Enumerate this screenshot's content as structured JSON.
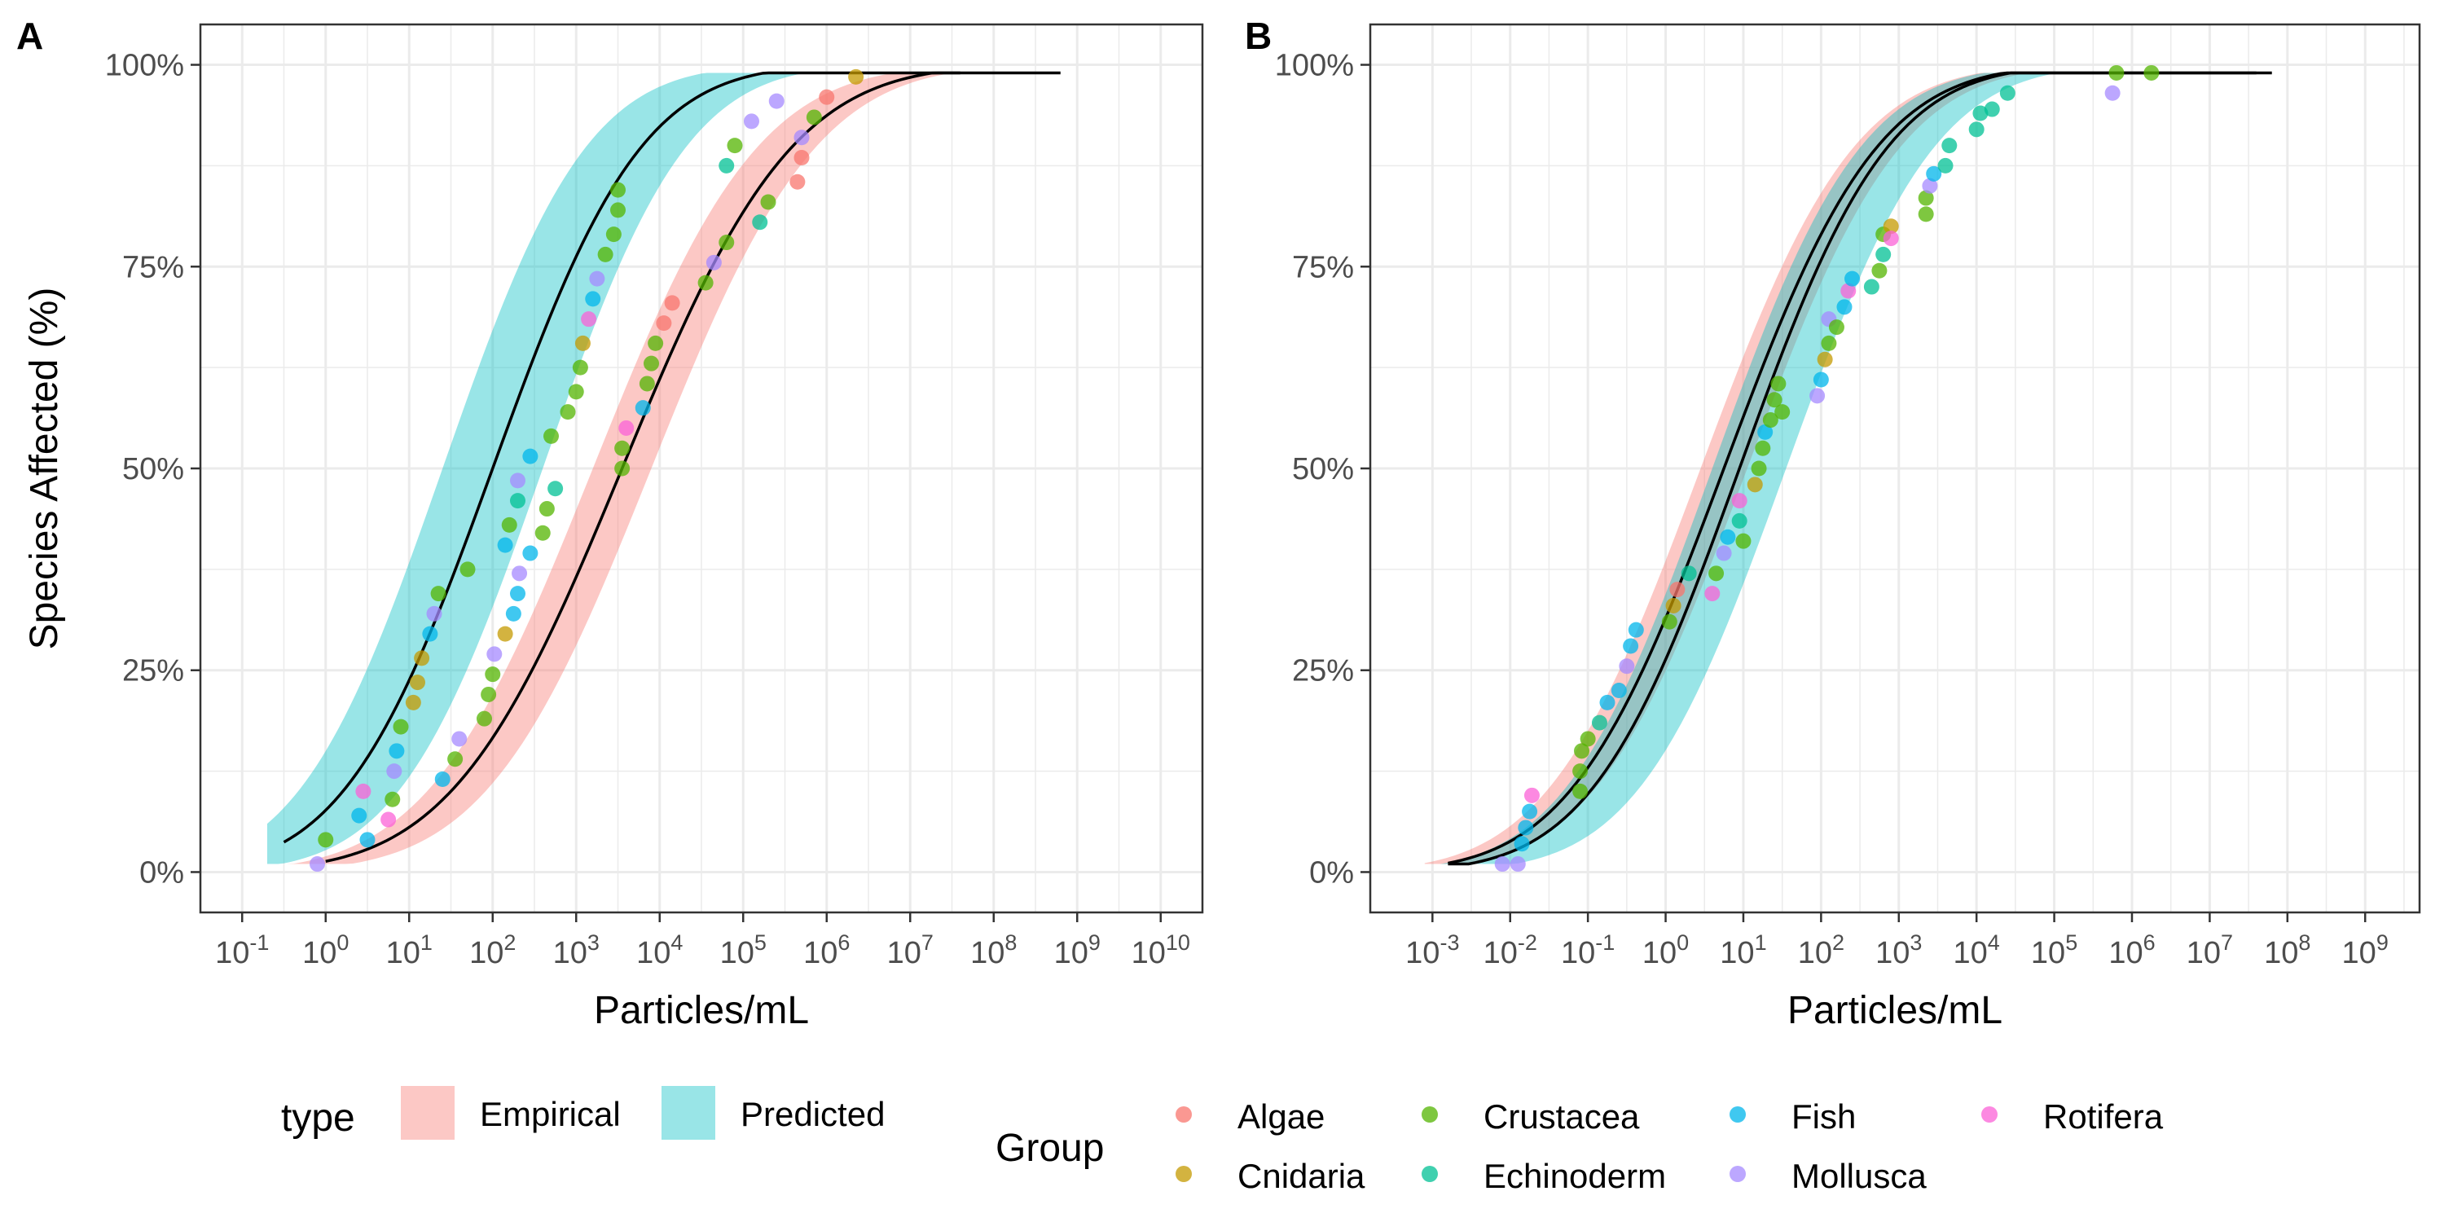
{
  "figure": {
    "y_axis_title": "Species Affected (%)"
  },
  "legend": {
    "type_title": "type",
    "type_items": [
      {
        "label": "Empirical",
        "color": "#F8766D"
      },
      {
        "label": "Predicted",
        "color": "#00BFC4"
      }
    ],
    "group_title": "Group",
    "group_items": [
      {
        "label": "Algae",
        "color": "#F8766D"
      },
      {
        "label": "Cnidaria",
        "color": "#C49A00"
      },
      {
        "label": "Crustacea",
        "color": "#53B400"
      },
      {
        "label": "Echinoderm",
        "color": "#00C094"
      },
      {
        "label": "Fish",
        "color": "#00B6EB"
      },
      {
        "label": "Mollusca",
        "color": "#A58AFF"
      },
      {
        "label": "Rotifera",
        "color": "#FB61D7"
      }
    ]
  },
  "chart_data": [
    {
      "panel": "A",
      "type": "scatter",
      "x_scale": "log10",
      "xlabel": "Particles/mL",
      "ylabel": "Species Affected (%)",
      "xlim_log10": [
        -1.5,
        10.5
      ],
      "ylim": [
        -0.05,
        1.05
      ],
      "x_ticks_log10": [
        -1,
        0,
        1,
        2,
        3,
        4,
        5,
        6,
        7,
        8,
        9,
        10
      ],
      "y_ticks": [
        0,
        0.25,
        0.5,
        0.75,
        1.0
      ],
      "y_tick_labels": [
        "0%",
        "25%",
        "50%",
        "75%",
        "100%"
      ],
      "curves": [
        {
          "name": "Empirical",
          "color": "#F8766D",
          "mu": 3.55,
          "sd": 1.6,
          "x_from": 0.0,
          "x_to": 8.8,
          "band_from": -1.0,
          "band_to": 9.6,
          "band_lo_mu": 3.2,
          "band_hi_mu": 3.9,
          "band_sd": 1.55
        },
        {
          "name": "Predicted",
          "color": "#00BFC4",
          "mu": 2.0,
          "sd": 1.4,
          "x_from": -0.5,
          "x_to": 7.6,
          "band_from": -0.7,
          "band_to": 7.2,
          "band_lo_mu": 1.4,
          "band_hi_mu": 2.6,
          "band_sd": 1.35
        }
      ],
      "points": [
        {
          "x": -0.1,
          "y": 0.01,
          "group": "Mollusca"
        },
        {
          "x": 0.0,
          "y": 0.04,
          "group": "Crustacea"
        },
        {
          "x": 0.4,
          "y": 0.07,
          "group": "Fish"
        },
        {
          "x": 0.45,
          "y": 0.1,
          "group": "Rotifera"
        },
        {
          "x": 0.5,
          "y": 0.04,
          "group": "Fish"
        },
        {
          "x": 0.75,
          "y": 0.065,
          "group": "Rotifera"
        },
        {
          "x": 0.8,
          "y": 0.09,
          "group": "Crustacea"
        },
        {
          "x": 0.82,
          "y": 0.125,
          "group": "Mollusca"
        },
        {
          "x": 0.85,
          "y": 0.15,
          "group": "Fish"
        },
        {
          "x": 0.9,
          "y": 0.18,
          "group": "Crustacea"
        },
        {
          "x": 1.05,
          "y": 0.21,
          "group": "Cnidaria"
        },
        {
          "x": 1.1,
          "y": 0.235,
          "group": "Cnidaria"
        },
        {
          "x": 1.15,
          "y": 0.265,
          "group": "Cnidaria"
        },
        {
          "x": 1.25,
          "y": 0.295,
          "group": "Fish"
        },
        {
          "x": 1.3,
          "y": 0.32,
          "group": "Mollusca"
        },
        {
          "x": 1.35,
          "y": 0.345,
          "group": "Crustacea"
        },
        {
          "x": 1.4,
          "y": 0.115,
          "group": "Fish"
        },
        {
          "x": 1.55,
          "y": 0.14,
          "group": "Crustacea"
        },
        {
          "x": 1.6,
          "y": 0.165,
          "group": "Mollusca"
        },
        {
          "x": 1.7,
          "y": 0.375,
          "group": "Crustacea"
        },
        {
          "x": 1.9,
          "y": 0.19,
          "group": "Crustacea"
        },
        {
          "x": 1.95,
          "y": 0.22,
          "group": "Crustacea"
        },
        {
          "x": 2.0,
          "y": 0.245,
          "group": "Crustacea"
        },
        {
          "x": 2.02,
          "y": 0.27,
          "group": "Mollusca"
        },
        {
          "x": 2.15,
          "y": 0.295,
          "group": "Cnidaria"
        },
        {
          "x": 2.15,
          "y": 0.405,
          "group": "Fish"
        },
        {
          "x": 2.2,
          "y": 0.43,
          "group": "Crustacea"
        },
        {
          "x": 2.25,
          "y": 0.32,
          "group": "Fish"
        },
        {
          "x": 2.3,
          "y": 0.46,
          "group": "Echinoderm"
        },
        {
          "x": 2.3,
          "y": 0.345,
          "group": "Fish"
        },
        {
          "x": 2.32,
          "y": 0.37,
          "group": "Mollusca"
        },
        {
          "x": 2.3,
          "y": 0.485,
          "group": "Mollusca"
        },
        {
          "x": 2.45,
          "y": 0.515,
          "group": "Fish"
        },
        {
          "x": 2.45,
          "y": 0.395,
          "group": "Fish"
        },
        {
          "x": 2.6,
          "y": 0.42,
          "group": "Crustacea"
        },
        {
          "x": 2.65,
          "y": 0.45,
          "group": "Crustacea"
        },
        {
          "x": 2.7,
          "y": 0.54,
          "group": "Crustacea"
        },
        {
          "x": 2.75,
          "y": 0.475,
          "group": "Echinoderm"
        },
        {
          "x": 2.9,
          "y": 0.57,
          "group": "Crustacea"
        },
        {
          "x": 3.0,
          "y": 0.595,
          "group": "Crustacea"
        },
        {
          "x": 3.05,
          "y": 0.625,
          "group": "Crustacea"
        },
        {
          "x": 3.08,
          "y": 0.655,
          "group": "Cnidaria"
        },
        {
          "x": 3.15,
          "y": 0.685,
          "group": "Rotifera"
        },
        {
          "x": 3.2,
          "y": 0.71,
          "group": "Fish"
        },
        {
          "x": 3.25,
          "y": 0.735,
          "group": "Mollusca"
        },
        {
          "x": 3.35,
          "y": 0.765,
          "group": "Crustacea"
        },
        {
          "x": 3.45,
          "y": 0.79,
          "group": "Crustacea"
        },
        {
          "x": 3.5,
          "y": 0.82,
          "group": "Crustacea"
        },
        {
          "x": 3.5,
          "y": 0.845,
          "group": "Crustacea"
        },
        {
          "x": 3.55,
          "y": 0.5,
          "group": "Crustacea"
        },
        {
          "x": 3.55,
          "y": 0.525,
          "group": "Crustacea"
        },
        {
          "x": 3.6,
          "y": 0.55,
          "group": "Rotifera"
        },
        {
          "x": 3.8,
          "y": 0.575,
          "group": "Fish"
        },
        {
          "x": 3.85,
          "y": 0.605,
          "group": "Crustacea"
        },
        {
          "x": 3.9,
          "y": 0.63,
          "group": "Crustacea"
        },
        {
          "x": 3.95,
          "y": 0.655,
          "group": "Crustacea"
        },
        {
          "x": 4.05,
          "y": 0.68,
          "group": "Algae"
        },
        {
          "x": 4.15,
          "y": 0.705,
          "group": "Algae"
        },
        {
          "x": 4.55,
          "y": 0.73,
          "group": "Crustacea"
        },
        {
          "x": 4.65,
          "y": 0.755,
          "group": "Mollusca"
        },
        {
          "x": 4.8,
          "y": 0.78,
          "group": "Crustacea"
        },
        {
          "x": 4.8,
          "y": 0.875,
          "group": "Echinoderm"
        },
        {
          "x": 4.9,
          "y": 0.9,
          "group": "Crustacea"
        },
        {
          "x": 5.1,
          "y": 0.93,
          "group": "Mollusca"
        },
        {
          "x": 5.2,
          "y": 0.805,
          "group": "Echinoderm"
        },
        {
          "x": 5.3,
          "y": 0.83,
          "group": "Crustacea"
        },
        {
          "x": 5.4,
          "y": 0.955,
          "group": "Mollusca"
        },
        {
          "x": 5.65,
          "y": 0.855,
          "group": "Algae"
        },
        {
          "x": 5.7,
          "y": 0.885,
          "group": "Algae"
        },
        {
          "x": 5.7,
          "y": 0.91,
          "group": "Mollusca"
        },
        {
          "x": 5.85,
          "y": 0.935,
          "group": "Crustacea"
        },
        {
          "x": 6.0,
          "y": 0.96,
          "group": "Algae"
        },
        {
          "x": 6.35,
          "y": 0.985,
          "group": "Cnidaria"
        }
      ]
    },
    {
      "panel": "B",
      "type": "scatter",
      "x_scale": "log10",
      "xlabel": "Particles/mL",
      "ylabel": "",
      "xlim_log10": [
        -3.8,
        9.7
      ],
      "ylim": [
        -0.05,
        1.05
      ],
      "x_ticks_log10": [
        -3,
        -2,
        -1,
        0,
        1,
        2,
        3,
        4,
        5,
        6,
        7,
        8,
        9
      ],
      "y_ticks": [
        0,
        0.25,
        0.5,
        0.75,
        1.0
      ],
      "y_tick_labels": [
        "0%",
        "25%",
        "50%",
        "75%",
        "100%"
      ],
      "curves": [
        {
          "name": "Empirical",
          "color": "#F8766D",
          "mu": 0.75,
          "sd": 1.55,
          "x_from": -2.8,
          "x_to": 7.6,
          "band_from": -3.1,
          "band_to": 8.2,
          "band_lo_mu": 0.45,
          "band_hi_mu": 1.05,
          "band_sd": 1.55
        },
        {
          "name": "Predicted",
          "color": "#00BFC4",
          "mu": 0.95,
          "sd": 1.5,
          "x_from": -2.8,
          "x_to": 7.8,
          "band_from": -3.0,
          "band_to": 9.0,
          "band_lo_mu": 0.6,
          "band_hi_mu": 1.55,
          "band_sd": 1.5
        }
      ],
      "points": [
        {
          "x": -2.1,
          "y": 0.01,
          "group": "Mollusca"
        },
        {
          "x": -1.9,
          "y": 0.01,
          "group": "Mollusca"
        },
        {
          "x": -1.85,
          "y": 0.035,
          "group": "Fish"
        },
        {
          "x": -1.8,
          "y": 0.055,
          "group": "Fish"
        },
        {
          "x": -1.75,
          "y": 0.075,
          "group": "Fish"
        },
        {
          "x": -1.72,
          "y": 0.095,
          "group": "Rotifera"
        },
        {
          "x": -1.1,
          "y": 0.1,
          "group": "Crustacea"
        },
        {
          "x": -1.1,
          "y": 0.125,
          "group": "Crustacea"
        },
        {
          "x": -1.08,
          "y": 0.15,
          "group": "Crustacea"
        },
        {
          "x": -1.0,
          "y": 0.165,
          "group": "Crustacea"
        },
        {
          "x": -0.85,
          "y": 0.185,
          "group": "Echinoderm"
        },
        {
          "x": -0.75,
          "y": 0.21,
          "group": "Fish"
        },
        {
          "x": -0.6,
          "y": 0.225,
          "group": "Fish"
        },
        {
          "x": -0.5,
          "y": 0.255,
          "group": "Mollusca"
        },
        {
          "x": -0.45,
          "y": 0.28,
          "group": "Fish"
        },
        {
          "x": -0.38,
          "y": 0.3,
          "group": "Fish"
        },
        {
          "x": 0.05,
          "y": 0.31,
          "group": "Crustacea"
        },
        {
          "x": 0.1,
          "y": 0.33,
          "group": "Cnidaria"
        },
        {
          "x": 0.15,
          "y": 0.35,
          "group": "Algae"
        },
        {
          "x": 0.3,
          "y": 0.37,
          "group": "Echinoderm"
        },
        {
          "x": 0.6,
          "y": 0.345,
          "group": "Rotifera"
        },
        {
          "x": 0.65,
          "y": 0.37,
          "group": "Crustacea"
        },
        {
          "x": 0.75,
          "y": 0.395,
          "group": "Mollusca"
        },
        {
          "x": 0.8,
          "y": 0.415,
          "group": "Fish"
        },
        {
          "x": 0.95,
          "y": 0.435,
          "group": "Echinoderm"
        },
        {
          "x": 0.95,
          "y": 0.46,
          "group": "Rotifera"
        },
        {
          "x": 1.0,
          "y": 0.41,
          "group": "Crustacea"
        },
        {
          "x": 1.15,
          "y": 0.48,
          "group": "Cnidaria"
        },
        {
          "x": 1.2,
          "y": 0.5,
          "group": "Crustacea"
        },
        {
          "x": 1.25,
          "y": 0.525,
          "group": "Crustacea"
        },
        {
          "x": 1.28,
          "y": 0.545,
          "group": "Fish"
        },
        {
          "x": 1.35,
          "y": 0.56,
          "group": "Crustacea"
        },
        {
          "x": 1.4,
          "y": 0.585,
          "group": "Crustacea"
        },
        {
          "x": 1.45,
          "y": 0.605,
          "group": "Crustacea"
        },
        {
          "x": 1.5,
          "y": 0.57,
          "group": "Crustacea"
        },
        {
          "x": 1.95,
          "y": 0.59,
          "group": "Mollusca"
        },
        {
          "x": 2.0,
          "y": 0.61,
          "group": "Fish"
        },
        {
          "x": 2.05,
          "y": 0.635,
          "group": "Cnidaria"
        },
        {
          "x": 2.1,
          "y": 0.655,
          "group": "Crustacea"
        },
        {
          "x": 2.1,
          "y": 0.685,
          "group": "Mollusca"
        },
        {
          "x": 2.2,
          "y": 0.675,
          "group": "Crustacea"
        },
        {
          "x": 2.3,
          "y": 0.7,
          "group": "Fish"
        },
        {
          "x": 2.35,
          "y": 0.72,
          "group": "Rotifera"
        },
        {
          "x": 2.4,
          "y": 0.735,
          "group": "Fish"
        },
        {
          "x": 2.65,
          "y": 0.725,
          "group": "Echinoderm"
        },
        {
          "x": 2.75,
          "y": 0.745,
          "group": "Crustacea"
        },
        {
          "x": 2.8,
          "y": 0.765,
          "group": "Echinoderm"
        },
        {
          "x": 2.8,
          "y": 0.79,
          "group": "Crustacea"
        },
        {
          "x": 2.9,
          "y": 0.8,
          "group": "Cnidaria"
        },
        {
          "x": 2.9,
          "y": 0.785,
          "group": "Rotifera"
        },
        {
          "x": 3.35,
          "y": 0.815,
          "group": "Crustacea"
        },
        {
          "x": 3.35,
          "y": 0.835,
          "group": "Crustacea"
        },
        {
          "x": 3.4,
          "y": 0.85,
          "group": "Mollusca"
        },
        {
          "x": 3.45,
          "y": 0.865,
          "group": "Fish"
        },
        {
          "x": 3.6,
          "y": 0.875,
          "group": "Echinoderm"
        },
        {
          "x": 3.65,
          "y": 0.9,
          "group": "Echinoderm"
        },
        {
          "x": 4.0,
          "y": 0.92,
          "group": "Echinoderm"
        },
        {
          "x": 4.05,
          "y": 0.94,
          "group": "Echinoderm"
        },
        {
          "x": 4.2,
          "y": 0.945,
          "group": "Echinoderm"
        },
        {
          "x": 4.4,
          "y": 0.965,
          "group": "Echinoderm"
        },
        {
          "x": 5.75,
          "y": 0.965,
          "group": "Mollusca"
        },
        {
          "x": 5.8,
          "y": 0.99,
          "group": "Crustacea"
        },
        {
          "x": 6.25,
          "y": 0.99,
          "group": "Crustacea"
        }
      ]
    }
  ]
}
